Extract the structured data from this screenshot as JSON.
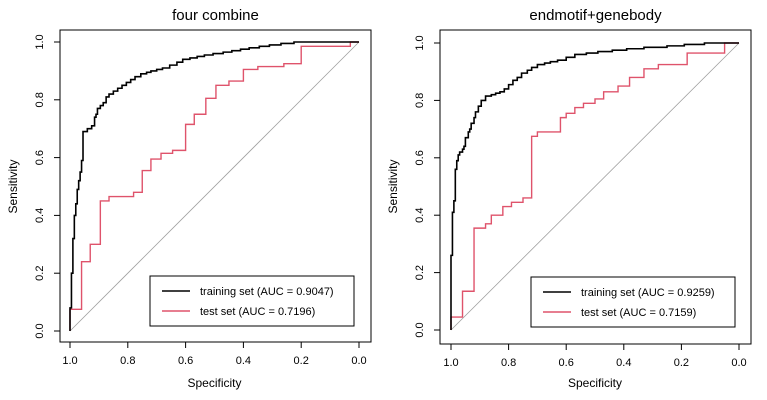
{
  "chart_data": [
    {
      "type": "line",
      "title": "four combine",
      "xlabel": "Specificity",
      "ylabel": "Sensitivity",
      "xlim": [
        1.0,
        0.0
      ],
      "ylim": [
        0.0,
        1.0
      ],
      "x_reversed": true,
      "xticks": [
        "1.0",
        "0.8",
        "0.6",
        "0.4",
        "0.2",
        "0.0"
      ],
      "yticks": [
        "0.0",
        "0.2",
        "0.4",
        "0.6",
        "0.8",
        "1.0"
      ],
      "grid": false,
      "legend_position": "bottom-right",
      "diagonal_reference": true,
      "series": [
        {
          "name": "training set (AUC = 0.9047)",
          "color": "#000000",
          "x": [
            1.0,
            1.0,
            0.995,
            0.995,
            0.99,
            0.99,
            0.985,
            0.985,
            0.98,
            0.98,
            0.975,
            0.975,
            0.97,
            0.97,
            0.965,
            0.965,
            0.96,
            0.96,
            0.955,
            0.955,
            0.94,
            0.94,
            0.925,
            0.925,
            0.915,
            0.915,
            0.91,
            0.91,
            0.905,
            0.905,
            0.895,
            0.895,
            0.885,
            0.885,
            0.875,
            0.875,
            0.865,
            0.865,
            0.85,
            0.85,
            0.835,
            0.835,
            0.82,
            0.82,
            0.805,
            0.805,
            0.79,
            0.79,
            0.775,
            0.775,
            0.755,
            0.755,
            0.735,
            0.735,
            0.72,
            0.72,
            0.7,
            0.7,
            0.68,
            0.68,
            0.655,
            0.655,
            0.63,
            0.63,
            0.61,
            0.61,
            0.585,
            0.585,
            0.56,
            0.56,
            0.535,
            0.535,
            0.505,
            0.505,
            0.47,
            0.47,
            0.44,
            0.44,
            0.41,
            0.41,
            0.38,
            0.38,
            0.345,
            0.345,
            0.31,
            0.31,
            0.27,
            0.27,
            0.225,
            0.225,
            0.17,
            0.17,
            0.1,
            0.1,
            0.04,
            0.04,
            0.0
          ],
          "y": [
            0.0,
            0.08,
            0.08,
            0.2,
            0.2,
            0.32,
            0.32,
            0.4,
            0.4,
            0.44,
            0.44,
            0.49,
            0.49,
            0.52,
            0.52,
            0.55,
            0.55,
            0.59,
            0.59,
            0.69,
            0.69,
            0.7,
            0.7,
            0.71,
            0.71,
            0.74,
            0.74,
            0.75,
            0.75,
            0.77,
            0.77,
            0.78,
            0.78,
            0.79,
            0.79,
            0.81,
            0.81,
            0.82,
            0.82,
            0.83,
            0.83,
            0.84,
            0.84,
            0.85,
            0.85,
            0.86,
            0.86,
            0.87,
            0.87,
            0.88,
            0.88,
            0.89,
            0.89,
            0.895,
            0.895,
            0.9,
            0.9,
            0.905,
            0.905,
            0.91,
            0.91,
            0.92,
            0.92,
            0.93,
            0.93,
            0.94,
            0.94,
            0.945,
            0.945,
            0.95,
            0.95,
            0.955,
            0.955,
            0.96,
            0.96,
            0.965,
            0.965,
            0.97,
            0.97,
            0.975,
            0.975,
            0.98,
            0.98,
            0.985,
            0.985,
            0.99,
            0.99,
            0.995,
            0.995,
            1.0,
            1.0,
            1.0,
            1.0,
            1.0,
            1.0,
            1.0,
            1.0
          ]
        },
        {
          "name": "test set (AUC = 0.7196)",
          "color": "#DF536B",
          "x": [
            1.0,
            1.0,
            0.96,
            0.96,
            0.93,
            0.93,
            0.895,
            0.895,
            0.865,
            0.865,
            0.78,
            0.78,
            0.75,
            0.75,
            0.72,
            0.72,
            0.685,
            0.685,
            0.645,
            0.645,
            0.6,
            0.6,
            0.57,
            0.57,
            0.53,
            0.53,
            0.495,
            0.495,
            0.45,
            0.45,
            0.4,
            0.4,
            0.35,
            0.35,
            0.26,
            0.26,
            0.2,
            0.2,
            0.03,
            0.03,
            0.0
          ],
          "y": [
            0.0,
            0.075,
            0.075,
            0.24,
            0.24,
            0.3,
            0.3,
            0.45,
            0.45,
            0.465,
            0.465,
            0.48,
            0.48,
            0.555,
            0.555,
            0.595,
            0.595,
            0.615,
            0.615,
            0.625,
            0.625,
            0.715,
            0.715,
            0.75,
            0.75,
            0.805,
            0.805,
            0.85,
            0.85,
            0.865,
            0.865,
            0.905,
            0.905,
            0.915,
            0.915,
            0.925,
            0.925,
            0.985,
            0.985,
            1.0,
            1.0
          ]
        }
      ]
    },
    {
      "type": "line",
      "title": "endmotif+genebody",
      "xlabel": "Specificity",
      "ylabel": "Sensitivity",
      "xlim": [
        1.0,
        0.0
      ],
      "ylim": [
        0.0,
        1.0
      ],
      "x_reversed": true,
      "xticks": [
        "1.0",
        "0.8",
        "0.6",
        "0.4",
        "0.2",
        "0.0"
      ],
      "yticks": [
        "0.0",
        "0.2",
        "0.4",
        "0.6",
        "0.8",
        "1.0"
      ],
      "grid": false,
      "legend_position": "bottom-right",
      "diagonal_reference": true,
      "series": [
        {
          "name": "training set (AUC = 0.9259)",
          "color": "#000000",
          "x": [
            1.0,
            1.0,
            0.995,
            0.995,
            0.99,
            0.99,
            0.985,
            0.985,
            0.98,
            0.98,
            0.975,
            0.975,
            0.97,
            0.97,
            0.96,
            0.96,
            0.955,
            0.955,
            0.95,
            0.95,
            0.94,
            0.94,
            0.935,
            0.935,
            0.93,
            0.93,
            0.92,
            0.92,
            0.915,
            0.915,
            0.905,
            0.905,
            0.895,
            0.895,
            0.88,
            0.88,
            0.86,
            0.86,
            0.845,
            0.845,
            0.83,
            0.83,
            0.815,
            0.815,
            0.8,
            0.8,
            0.785,
            0.785,
            0.77,
            0.77,
            0.755,
            0.755,
            0.735,
            0.735,
            0.72,
            0.72,
            0.7,
            0.7,
            0.675,
            0.675,
            0.655,
            0.655,
            0.63,
            0.63,
            0.6,
            0.6,
            0.57,
            0.57,
            0.53,
            0.53,
            0.49,
            0.49,
            0.44,
            0.44,
            0.39,
            0.39,
            0.33,
            0.33,
            0.25,
            0.25,
            0.19,
            0.19,
            0.12,
            0.12,
            0.05,
            0.05,
            0.0
          ],
          "y": [
            0.0,
            0.26,
            0.26,
            0.41,
            0.41,
            0.45,
            0.45,
            0.56,
            0.56,
            0.59,
            0.59,
            0.61,
            0.61,
            0.62,
            0.62,
            0.63,
            0.63,
            0.64,
            0.64,
            0.67,
            0.67,
            0.69,
            0.69,
            0.7,
            0.7,
            0.72,
            0.72,
            0.74,
            0.74,
            0.76,
            0.76,
            0.78,
            0.78,
            0.8,
            0.8,
            0.815,
            0.815,
            0.82,
            0.82,
            0.825,
            0.825,
            0.83,
            0.83,
            0.84,
            0.84,
            0.855,
            0.855,
            0.87,
            0.87,
            0.88,
            0.88,
            0.895,
            0.895,
            0.905,
            0.905,
            0.915,
            0.915,
            0.925,
            0.925,
            0.93,
            0.93,
            0.935,
            0.935,
            0.94,
            0.94,
            0.95,
            0.95,
            0.96,
            0.96,
            0.965,
            0.965,
            0.97,
            0.97,
            0.975,
            0.975,
            0.98,
            0.98,
            0.985,
            0.985,
            0.99,
            0.99,
            0.995,
            0.995,
            1.0,
            1.0,
            1.0,
            1.0
          ]
        },
        {
          "name": "test set (AUC = 0.7159)",
          "color": "#DF536B",
          "x": [
            1.0,
            1.0,
            0.96,
            0.96,
            0.92,
            0.92,
            0.88,
            0.88,
            0.86,
            0.86,
            0.82,
            0.82,
            0.79,
            0.79,
            0.75,
            0.75,
            0.72,
            0.72,
            0.7,
            0.7,
            0.62,
            0.62,
            0.6,
            0.6,
            0.57,
            0.57,
            0.54,
            0.54,
            0.5,
            0.5,
            0.47,
            0.47,
            0.42,
            0.42,
            0.38,
            0.38,
            0.33,
            0.33,
            0.28,
            0.28,
            0.18,
            0.18,
            0.05,
            0.05,
            0.0
          ],
          "y": [
            0.0,
            0.045,
            0.045,
            0.135,
            0.135,
            0.355,
            0.355,
            0.37,
            0.37,
            0.4,
            0.4,
            0.43,
            0.43,
            0.445,
            0.445,
            0.46,
            0.46,
            0.675,
            0.675,
            0.69,
            0.69,
            0.74,
            0.74,
            0.755,
            0.755,
            0.775,
            0.775,
            0.79,
            0.79,
            0.805,
            0.805,
            0.83,
            0.83,
            0.85,
            0.85,
            0.88,
            0.88,
            0.91,
            0.91,
            0.925,
            0.925,
            0.965,
            0.965,
            1.0,
            1.0
          ]
        }
      ]
    }
  ]
}
